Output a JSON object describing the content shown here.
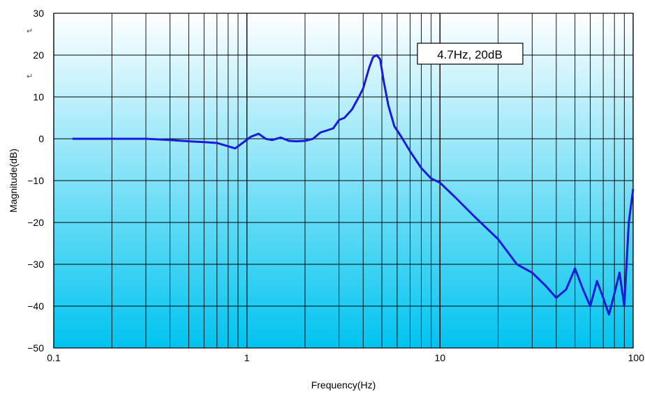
{
  "chart_data": {
    "type": "line",
    "title": "",
    "xlabel": "Frequency(Hz)",
    "ylabel": "Magnitude(dB)",
    "x_scale": "log",
    "xlim": [
      0.1,
      100
    ],
    "ylim": [
      -50,
      30
    ],
    "grid": true,
    "x_ticks": [
      0.1,
      1,
      10,
      100
    ],
    "x_tick_labels": [
      "0.1",
      "1",
      "10",
      "100"
    ],
    "y_ticks": [
      30,
      20,
      10,
      0,
      -10,
      -20,
      -30,
      -40,
      -50
    ],
    "y_tick_labels": [
      "30",
      "20",
      "10",
      "0",
      "−10",
      "−20",
      "−30",
      "−40",
      "−50"
    ],
    "colors": {
      "line": "#1a1adc",
      "bg_top": "#ffffff",
      "bg_bottom": "#00c4f0"
    },
    "annotation": {
      "text": "4.7Hz, 20dB",
      "x": 4.7,
      "y": 20
    },
    "paragraph_marks": [
      "↵",
      "↵"
    ],
    "series": [
      {
        "x": [
          0.125,
          0.15,
          0.2,
          0.25,
          0.3,
          0.4,
          0.5,
          0.6,
          0.7,
          0.8,
          0.87,
          0.95,
          1.05,
          1.15,
          1.25,
          1.35,
          1.5,
          1.65,
          1.8,
          2.0,
          2.2,
          2.4,
          2.6,
          2.8,
          3.0,
          3.2,
          3.5,
          3.8,
          4.0,
          4.3,
          4.5,
          4.7,
          4.9,
          5.1,
          5.4,
          5.8,
          6.3,
          7.0,
          8.0,
          9.0,
          10,
          12,
          15,
          20,
          25,
          30,
          35,
          40,
          45,
          50,
          55,
          60,
          65,
          70,
          75,
          80,
          85,
          90,
          95,
          100
        ],
        "y": [
          0,
          0,
          0,
          0,
          0,
          -0.3,
          -0.6,
          -0.8,
          -1.0,
          -1.8,
          -2.3,
          -1.0,
          0.5,
          1.2,
          0.0,
          -0.3,
          0.3,
          -0.5,
          -0.6,
          -0.5,
          0.0,
          1.5,
          2.0,
          2.5,
          4.5,
          5.0,
          7.0,
          10.0,
          12.0,
          17.0,
          19.5,
          20.0,
          19.0,
          14.0,
          8.0,
          3.0,
          0.5,
          -3.0,
          -7.0,
          -9.5,
          -10.5,
          -14.0,
          -18.5,
          -24.0,
          -30.0,
          -32.0,
          -35.0,
          -38.0,
          -36.0,
          -31.0,
          -36.0,
          -40.0,
          -34.0,
          -38.0,
          -42.0,
          -37.0,
          -32.0,
          -40.0,
          -20.0,
          -12.0
        ]
      }
    ]
  }
}
